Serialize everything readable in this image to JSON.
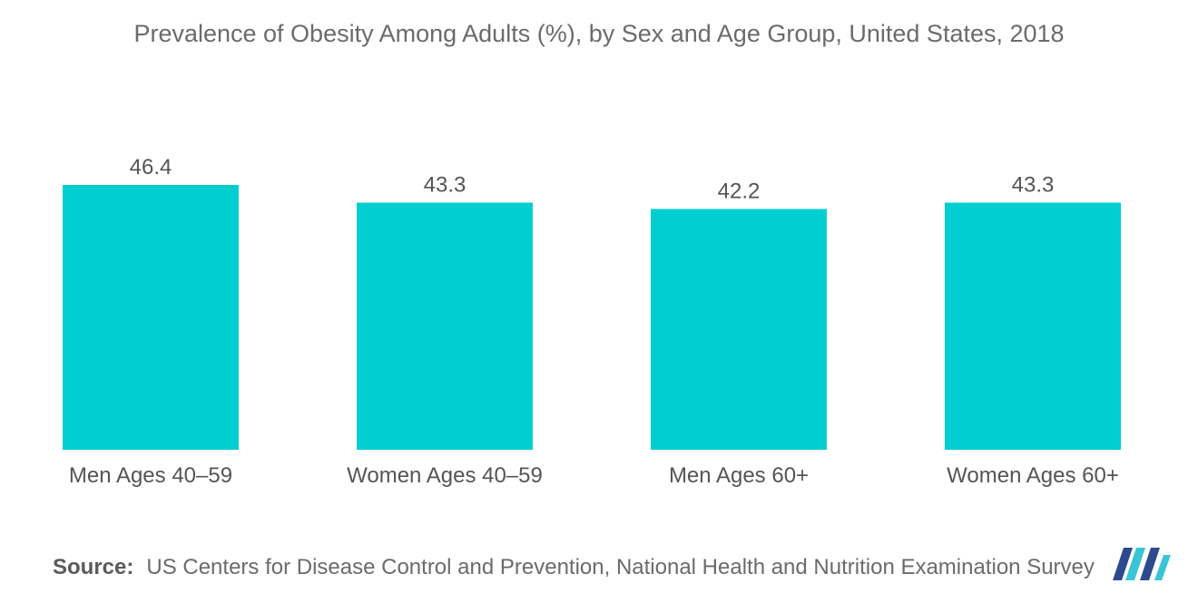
{
  "chart_data": {
    "type": "bar",
    "title": "Prevalence of Obesity Among Adults (%), by Sex and Age Group, United States, 2018",
    "categories": [
      "Men Ages 40–59",
      "Women Ages 40–59",
      "Men Ages 60+",
      "Women Ages 60+"
    ],
    "values": [
      46.4,
      43.3,
      42.2,
      43.3
    ],
    "value_labels": [
      "46.4",
      "43.3",
      "42.2",
      "43.3"
    ],
    "xlabel": "",
    "ylabel": "",
    "ylim": [
      0,
      46.4
    ],
    "grid": false,
    "legend": "none",
    "bar_color": "#00CED1"
  },
  "source": {
    "label": "Source:",
    "text": "US Centers for Disease Control and Prevention, National Health and Nutrition Examination Survey"
  },
  "logo": {
    "icon": "mordor-intelligence-logo-icon",
    "colors": [
      "#2E4A8F",
      "#39C5D6"
    ]
  }
}
